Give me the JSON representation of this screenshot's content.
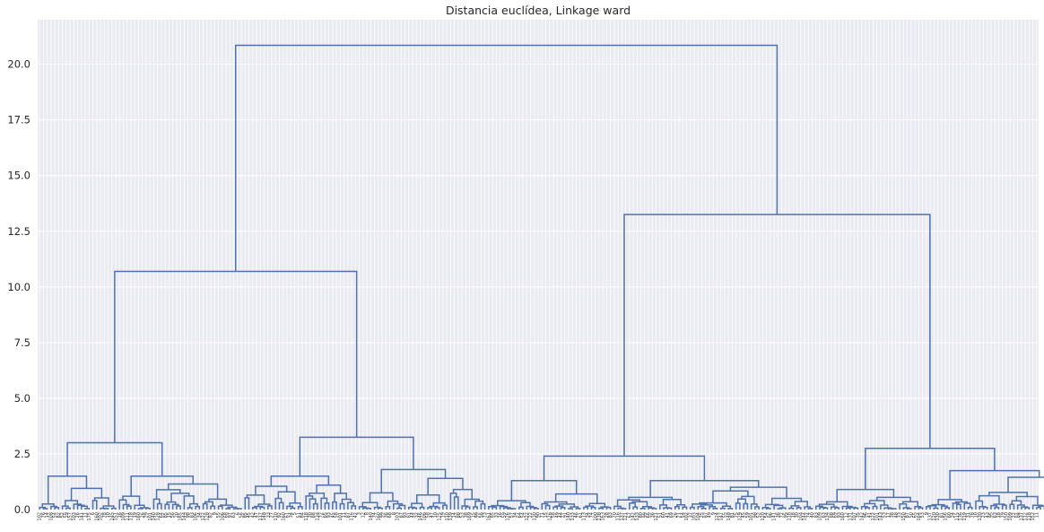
{
  "chart_data": {
    "type": "dendrogram",
    "title": "Distancia euclídea, Linkage ward",
    "xlabel": "",
    "ylabel": "",
    "ylim": [
      0,
      22
    ],
    "yticks": [
      "0.0",
      "2.5",
      "5.0",
      "7.5",
      "10.0",
      "12.5",
      "15.0",
      "17.5",
      "20.0"
    ],
    "grid": true,
    "leaves": [
      "102",
      "76",
      "14",
      "108",
      "54",
      "82",
      "52",
      "59",
      "157",
      "103",
      "26",
      "141",
      "11",
      "175",
      "6",
      "160",
      "102",
      "78",
      "10",
      "145",
      "151",
      "16",
      "109",
      "111",
      "118",
      "19",
      "160",
      "26",
      "29",
      "101",
      "140",
      "128",
      "64",
      "85",
      "15",
      "56",
      "20",
      "165",
      "144",
      "98",
      "83",
      "106",
      "34",
      "122",
      "128",
      "82",
      "9",
      "55",
      "106",
      "68",
      "97",
      "63",
      "6",
      "56",
      "85",
      "45",
      "42",
      "47",
      "117",
      "148",
      "33",
      "27",
      "110",
      "92",
      "160",
      "61",
      "34",
      "5",
      "51",
      "84",
      "118",
      "30",
      "68",
      "134",
      "72",
      "65",
      "93",
      "45",
      "58",
      "101",
      "11",
      "87",
      "116",
      "42",
      "3",
      "12",
      "8",
      "140",
      "74",
      "160",
      "99",
      "36",
      "68",
      "8",
      "103",
      "67",
      "93",
      "81",
      "44",
      "32",
      "146",
      "106",
      "58",
      "47",
      "10",
      "125",
      "19",
      "110",
      "139",
      "14",
      "88",
      "53",
      "38",
      "169",
      "15",
      "99",
      "56",
      "73",
      "161",
      "85",
      "33",
      "16",
      "59",
      "126",
      "57",
      "34",
      "64",
      "54",
      "122",
      "22",
      "130",
      "90",
      "71",
      "15",
      "126",
      "58",
      "49",
      "44",
      "91",
      "140",
      "133",
      "46",
      "61",
      "113",
      "34",
      "74",
      "100",
      "138",
      "163",
      "28",
      "83",
      "70",
      "116",
      "137",
      "121",
      "67",
      "142",
      "133",
      "80",
      "99",
      "66",
      "36",
      "121",
      "51",
      "60",
      "41",
      "69",
      "26",
      "21",
      "54",
      "102",
      "37",
      "103",
      "104",
      "25",
      "87",
      "49",
      "9",
      "124",
      "147",
      "55",
      "148",
      "81",
      "75",
      "129",
      "45",
      "59",
      "101",
      "98",
      "52",
      "120",
      "54",
      "86",
      "141",
      "36",
      "72",
      "95",
      "118",
      "18",
      "30",
      "104",
      "144",
      "74",
      "40",
      "83",
      "109",
      "63",
      "134",
      "88",
      "69",
      "93",
      "160",
      "12",
      "131",
      "107",
      "35",
      "142",
      "96",
      "41",
      "122",
      "101",
      "143",
      "53",
      "17",
      "38",
      "48",
      "33",
      "150",
      "87",
      "50",
      "65",
      "164",
      "53",
      "9",
      "137",
      "120",
      "130",
      "81",
      "156",
      "60",
      "24",
      "115",
      "136",
      "119",
      "31",
      "78",
      "10",
      "130",
      "23",
      "43",
      "95",
      "63",
      "18",
      "79",
      "150",
      "109",
      "22",
      "84",
      "137",
      "112",
      "118",
      "152",
      "11"
    ],
    "main_links": [
      {
        "name": "root",
        "height": 20.85
      },
      {
        "name": "left-cluster",
        "height": 10.7
      },
      {
        "name": "right-cluster",
        "height": 13.25
      },
      {
        "name": "left-a",
        "height": 3.0
      },
      {
        "name": "left-b",
        "height": 3.25
      },
      {
        "name": "right-a",
        "height": 2.4
      },
      {
        "name": "right-b",
        "height": 2.75
      }
    ]
  }
}
